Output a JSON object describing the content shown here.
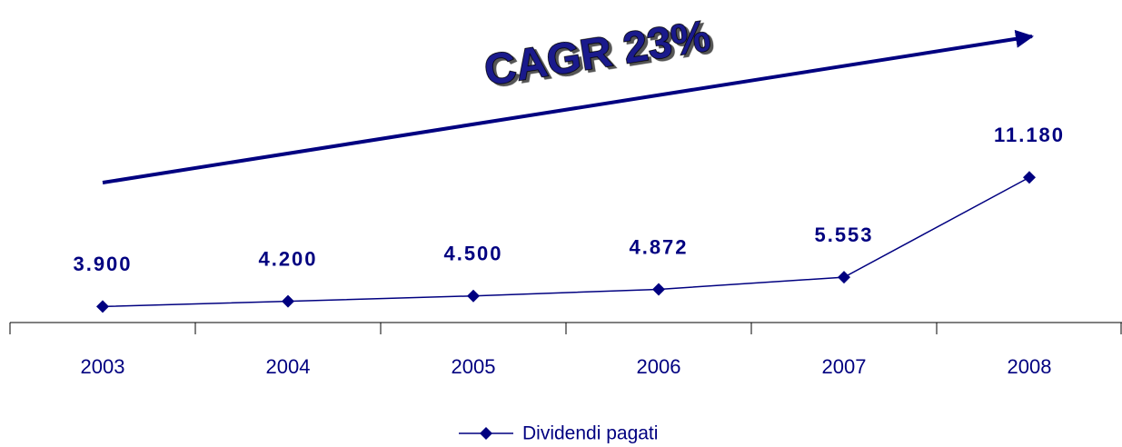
{
  "chart_data": {
    "type": "line",
    "annotation": "CAGR 23%",
    "categories": [
      "2003",
      "2004",
      "2005",
      "2006",
      "2007",
      "2008"
    ],
    "series": [
      {
        "name": "Dividendi pagati",
        "color": "#000080",
        "values": [
          3900,
          4200,
          4500,
          4872,
          5553,
          11180
        ],
        "value_labels": [
          "3.900",
          "4.200",
          "4.500",
          "4.872",
          "5.553",
          "11.180"
        ]
      }
    ],
    "ylim": [
      3000,
      20000
    ]
  }
}
